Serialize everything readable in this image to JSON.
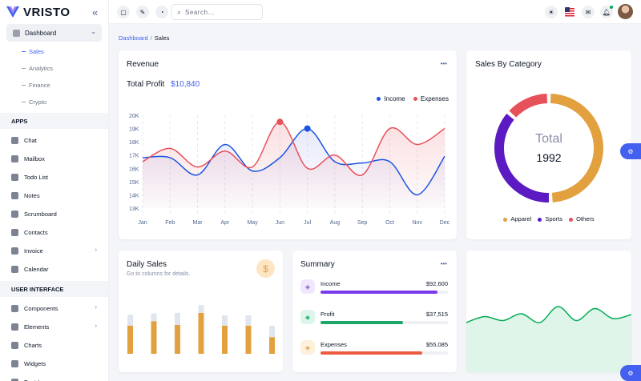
{
  "app": {
    "name": "VRISTO"
  },
  "sidebar": {
    "dashboard_label": "Dashboard",
    "sub_items": [
      "Sales",
      "Analytics",
      "Finance",
      "Crypto"
    ],
    "apps_header": "APPS",
    "apps": [
      {
        "label": "Chat",
        "icon": "chat-icon",
        "chevron": false
      },
      {
        "label": "Mailbox",
        "icon": "mailbox-icon",
        "chevron": false
      },
      {
        "label": "Todo List",
        "icon": "todo-list-icon",
        "chevron": false
      },
      {
        "label": "Notes",
        "icon": "notes-icon",
        "chevron": false
      },
      {
        "label": "Scrumboard",
        "icon": "scrumboard-icon",
        "chevron": false
      },
      {
        "label": "Contacts",
        "icon": "contacts-icon",
        "chevron": false
      },
      {
        "label": "Invoice",
        "icon": "invoice-icon",
        "chevron": true
      },
      {
        "label": "Calendar",
        "icon": "calendar-icon",
        "chevron": false
      }
    ],
    "ui_header": "USER INTERFACE",
    "ui_items": [
      {
        "label": "Components",
        "icon": "components-icon",
        "chevron": true
      },
      {
        "label": "Elements",
        "icon": "elements-icon",
        "chevron": true
      },
      {
        "label": "Charts",
        "icon": "charts-icon",
        "chevron": false
      },
      {
        "label": "Widgets",
        "icon": "widgets-icon",
        "chevron": false
      },
      {
        "label": "Font Icons",
        "icon": "font-icons-icon",
        "chevron": false
      }
    ]
  },
  "header": {
    "search_placeholder": "Search..."
  },
  "breadcrumb": {
    "parent": "Dashboard",
    "separator": "/",
    "current": "Sales"
  },
  "revenue": {
    "title": "Revenue",
    "total_label": "Total Profit",
    "total_value": "$10,840",
    "legend": [
      {
        "name": "Income",
        "color": "#1b55e2"
      },
      {
        "name": "Expenses",
        "color": "#e7515a"
      }
    ]
  },
  "sales_by_category": {
    "title": "Sales By Category",
    "center_label": "Total",
    "center_value": "1992",
    "legend": [
      {
        "name": "Apparel",
        "color": "#e2a03f"
      },
      {
        "name": "Sports",
        "color": "#5c1ac3"
      },
      {
        "name": "Others",
        "color": "#e7515a"
      }
    ]
  },
  "daily_sales": {
    "title": "Daily Sales",
    "subtitle": "Go to columns for details.",
    "icon": "dollar-icon"
  },
  "summary": {
    "title": "Summary",
    "rows": [
      {
        "label": "Income",
        "value": "$92,600",
        "percent": 92,
        "color": "#7c3aed",
        "icon": "income-icon",
        "ico_bg": "#f1e8ff",
        "ico_color": "#805dca"
      },
      {
        "label": "Profit",
        "value": "$37,515",
        "percent": 65,
        "color": "#1ea66a",
        "icon": "profit-icon",
        "ico_bg": "#ddf5ea",
        "ico_color": "#00ab55"
      },
      {
        "label": "Expenses",
        "value": "$55,085",
        "percent": 80,
        "color": "#ec5b3f",
        "icon": "expenses-icon",
        "ico_bg": "#fdf1dc",
        "ico_color": "#e2a03f"
      }
    ]
  },
  "chart_data": [
    {
      "type": "line",
      "categories": [
        "Jan",
        "Feb",
        "Mar",
        "Apr",
        "May",
        "Jun",
        "Jul",
        "Aug",
        "Sep",
        "Oct",
        "Nov",
        "Dec"
      ],
      "ylim": [
        13000,
        20000
      ],
      "yticks": [
        "13K",
        "14K",
        "15K",
        "16K",
        "17K",
        "18K",
        "19K",
        "20K"
      ],
      "series": [
        {
          "name": "Income",
          "color": "#1b55e2",
          "values": [
            16800,
            16800,
            15500,
            17800,
            15800,
            16800,
            19000,
            16500,
            16400,
            16500,
            14000,
            16900
          ]
        },
        {
          "name": "Expenses",
          "color": "#e7515a",
          "values": [
            16500,
            17500,
            16100,
            17300,
            16100,
            19500,
            16000,
            17000,
            15500,
            19000,
            17800,
            19000
          ]
        }
      ],
      "grid": true,
      "legend": "top-right"
    },
    {
      "type": "pie",
      "categories": [
        "Apparel",
        "Sports",
        "Others"
      ],
      "values": [
        985,
        737,
        270
      ],
      "colors": [
        "#e2a03f",
        "#5c1ac3",
        "#e7515a"
      ],
      "total": 1992
    },
    {
      "type": "bar",
      "stacked": true,
      "values_a": [
        44,
        51,
        45,
        64,
        44,
        44,
        26
      ],
      "values_b": [
        17,
        12,
        19,
        12,
        16,
        16,
        18
      ],
      "ylim": [
        0,
        100
      ],
      "colors": [
        "#e2a03f",
        "#e0e6ed"
      ]
    },
    {
      "type": "area",
      "values": [
        40,
        55,
        45,
        62,
        40,
        80,
        45,
        75,
        50,
        60
      ],
      "ylim": [
        0,
        100
      ],
      "color": "#00ab55"
    }
  ]
}
